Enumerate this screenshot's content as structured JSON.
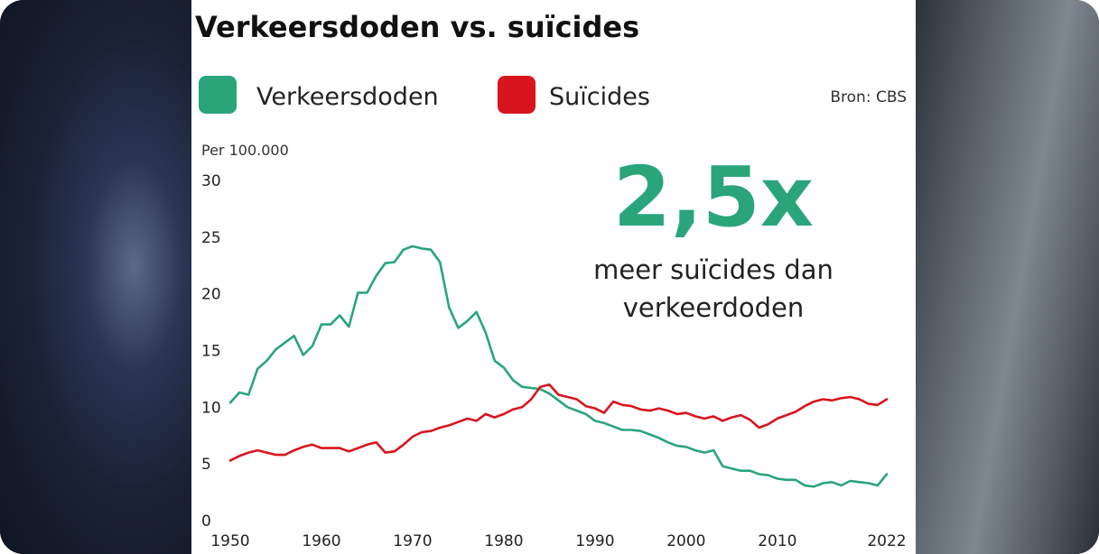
{
  "title": "Verkeersdoden vs. suïcides",
  "source": "Bron: CBS",
  "highlight": {
    "value": "2,5x",
    "line1": "meer suïcides dan",
    "line2": "verkeerdoden"
  },
  "colors": {
    "verkeersdoden": "#2aa57a",
    "suicides": "#d8151e"
  },
  "chart_data": {
    "type": "line",
    "ylabel": "Per 100.000",
    "ylim": [
      0,
      30
    ],
    "yticks": [
      0,
      5,
      10,
      15,
      20,
      25,
      30
    ],
    "xlim": [
      1950,
      2022
    ],
    "xticks": [
      1950,
      1960,
      1970,
      1980,
      1990,
      2000,
      2010,
      2022
    ],
    "legend": "top",
    "grid": false,
    "series": [
      {
        "name": "Verkeersdoden",
        "color": "#2aa57a",
        "x": [
          1950,
          1951,
          1952,
          1953,
          1954,
          1955,
          1956,
          1957,
          1958,
          1959,
          1960,
          1961,
          1962,
          1963,
          1964,
          1965,
          1966,
          1967,
          1968,
          1969,
          1970,
          1971,
          1972,
          1973,
          1974,
          1975,
          1976,
          1977,
          1978,
          1979,
          1980,
          1981,
          1982,
          1983,
          1984,
          1985,
          1986,
          1987,
          1988,
          1989,
          1990,
          1991,
          1992,
          1993,
          1994,
          1995,
          1996,
          1997,
          1998,
          1999,
          2000,
          2001,
          2002,
          2003,
          2004,
          2005,
          2006,
          2007,
          2008,
          2009,
          2010,
          2011,
          2012,
          2013,
          2014,
          2015,
          2016,
          2017,
          2018,
          2019,
          2020,
          2021,
          2022
        ],
        "values": [
          10.4,
          11.3,
          11.1,
          13.4,
          14.1,
          15.1,
          15.7,
          16.3,
          14.6,
          15.4,
          17.3,
          17.3,
          18.1,
          17.1,
          20.1,
          20.1,
          21.6,
          22.7,
          22.8,
          23.9,
          24.2,
          24.0,
          23.9,
          22.8,
          18.8,
          17.0,
          17.6,
          18.4,
          16.6,
          14.1,
          13.5,
          12.4,
          11.8,
          11.7,
          11.6,
          11.2,
          10.6,
          10.0,
          9.7,
          9.4,
          8.8,
          8.6,
          8.3,
          8.0,
          8.0,
          7.9,
          7.6,
          7.3,
          6.9,
          6.6,
          6.5,
          6.2,
          6.0,
          6.2,
          4.8,
          4.6,
          4.4,
          4.4,
          4.1,
          4.0,
          3.7,
          3.6,
          3.6,
          3.1,
          3.0,
          3.3,
          3.4,
          3.1,
          3.5,
          3.4,
          3.3,
          3.1,
          4.1
        ]
      },
      {
        "name": "Suïcides",
        "color": "#d8151e",
        "x": [
          1950,
          1951,
          1952,
          1953,
          1954,
          1955,
          1956,
          1957,
          1958,
          1959,
          1960,
          1961,
          1962,
          1963,
          1964,
          1965,
          1966,
          1967,
          1968,
          1969,
          1970,
          1971,
          1972,
          1973,
          1974,
          1975,
          1976,
          1977,
          1978,
          1979,
          1980,
          1981,
          1982,
          1983,
          1984,
          1985,
          1986,
          1987,
          1988,
          1989,
          1990,
          1991,
          1992,
          1993,
          1994,
          1995,
          1996,
          1997,
          1998,
          1999,
          2000,
          2001,
          2002,
          2003,
          2004,
          2005,
          2006,
          2007,
          2008,
          2009,
          2010,
          2011,
          2012,
          2013,
          2014,
          2015,
          2016,
          2017,
          2018,
          2019,
          2020,
          2021,
          2022
        ],
        "values": [
          5.3,
          5.7,
          6.0,
          6.2,
          6.0,
          5.8,
          5.8,
          6.2,
          6.5,
          6.7,
          6.4,
          6.4,
          6.4,
          6.1,
          6.4,
          6.7,
          6.9,
          6.0,
          6.1,
          6.7,
          7.4,
          7.8,
          7.9,
          8.2,
          8.4,
          8.7,
          9.0,
          8.8,
          9.4,
          9.1,
          9.4,
          9.8,
          10.0,
          10.7,
          11.8,
          12.0,
          11.1,
          10.9,
          10.7,
          10.1,
          9.9,
          9.5,
          10.5,
          10.2,
          10.1,
          9.8,
          9.7,
          9.9,
          9.7,
          9.4,
          9.5,
          9.2,
          9.0,
          9.2,
          8.8,
          9.1,
          9.3,
          8.9,
          8.2,
          8.5,
          9.0,
          9.3,
          9.6,
          10.1,
          10.5,
          10.7,
          10.6,
          10.8,
          10.9,
          10.7,
          10.3,
          10.2,
          10.7
        ]
      }
    ]
  }
}
